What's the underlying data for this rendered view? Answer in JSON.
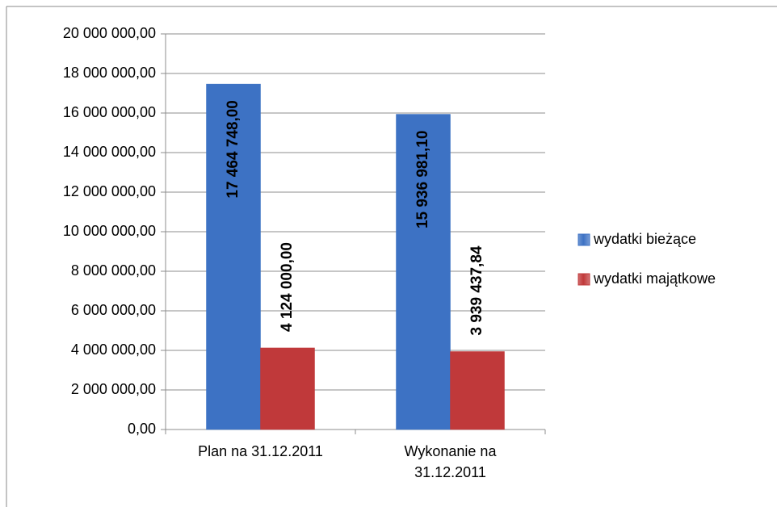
{
  "chart_data": {
    "type": "bar",
    "categories": [
      "Plan na 31.12.2011",
      "Wykonanie na 31.12.2011"
    ],
    "series": [
      {
        "name": "wydatki bieżące",
        "color": "#3d72c4",
        "values": [
          17464748.0,
          15936981.1
        ],
        "value_labels": [
          "17 464 748,00",
          "15 936 981,10"
        ]
      },
      {
        "name": "wydatki majątkowe",
        "color": "#c0393a",
        "values": [
          4124000.0,
          3939437.84
        ],
        "value_labels": [
          "4 124 000,00",
          "3 939 437,84"
        ]
      }
    ],
    "ylim": [
      0,
      20000000
    ],
    "yticks": [
      {
        "value": 0,
        "label": "0,00"
      },
      {
        "value": 2000000,
        "label": "2 000 000,00"
      },
      {
        "value": 4000000,
        "label": "4 000 000,00"
      },
      {
        "value": 6000000,
        "label": "6 000 000,00"
      },
      {
        "value": 8000000,
        "label": "8 000 000,00"
      },
      {
        "value": 10000000,
        "label": "10 000 000,00"
      },
      {
        "value": 12000000,
        "label": "12 000 000,00"
      },
      {
        "value": 14000000,
        "label": "14 000 000,00"
      },
      {
        "value": 16000000,
        "label": "16 000 000,00"
      },
      {
        "value": 18000000,
        "label": "18 000 000,00"
      },
      {
        "value": 20000000,
        "label": "20 000 000,00"
      }
    ],
    "grid": true,
    "legend": "right"
  }
}
